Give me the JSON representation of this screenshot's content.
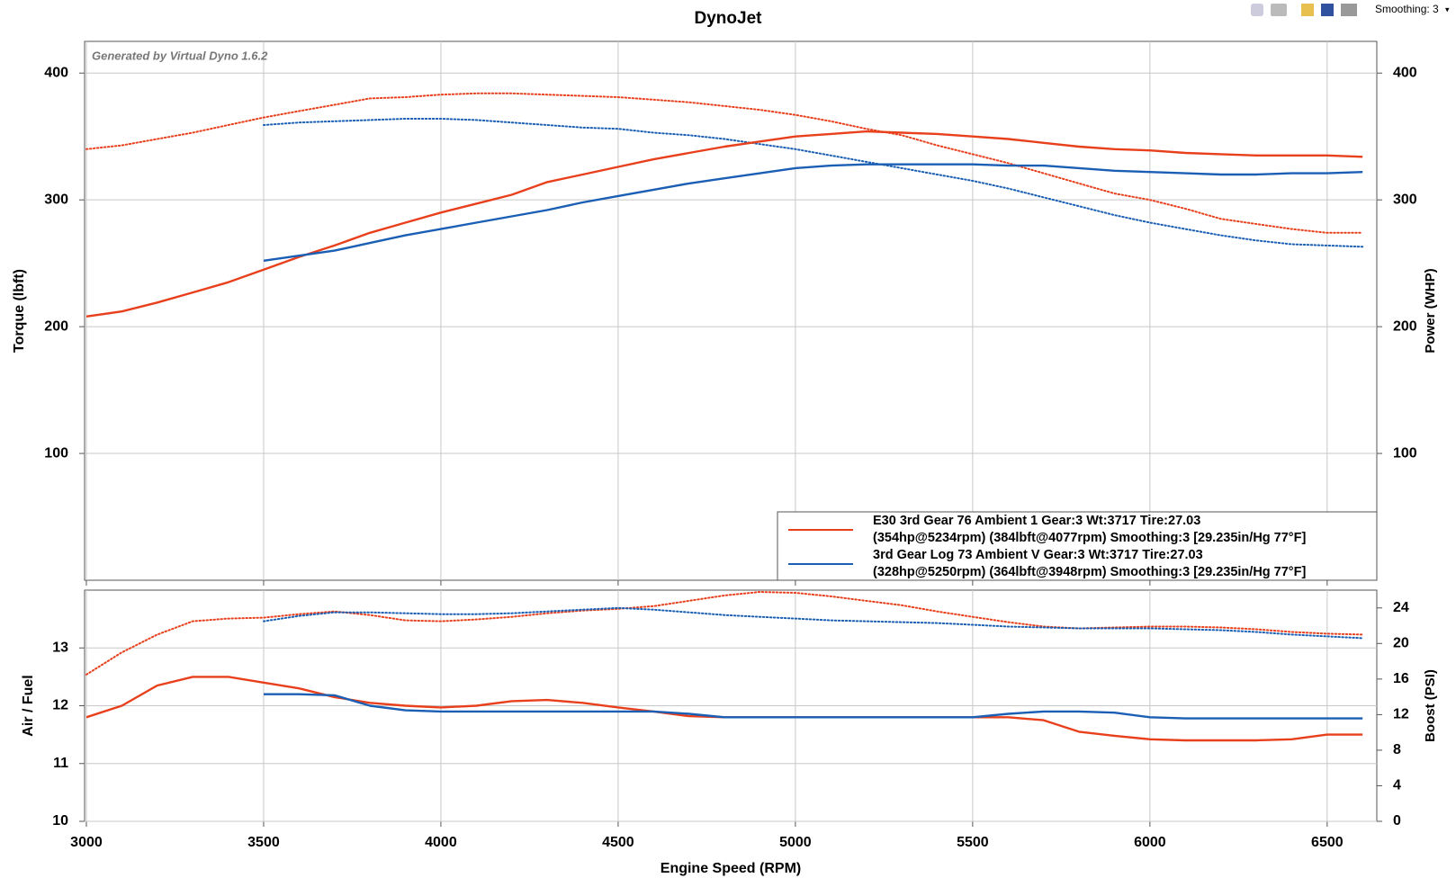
{
  "toolbar": {
    "smoothing": "Smoothing: 3"
  },
  "chart_data": [
    {
      "type": "line",
      "title": "DynoJet",
      "watermark": "Generated by Virtual Dyno 1.6.2",
      "ylabel": "Torque (lbft)",
      "y2label": "Power (WHP)",
      "xlim": [
        2995,
        6640
      ],
      "ylim": [
        0,
        425
      ],
      "yticks": [
        100,
        200,
        300,
        400
      ],
      "y2lim": [
        0,
        425
      ],
      "y2ticks": [
        100,
        200,
        300,
        400
      ],
      "grid": true,
      "x": [
        3000,
        3100,
        3200,
        3300,
        3400,
        3500,
        3600,
        3700,
        3800,
        3900,
        4000,
        4100,
        4200,
        4300,
        4400,
        4500,
        4600,
        4700,
        4800,
        4900,
        5000,
        5100,
        5200,
        5300,
        5400,
        5500,
        5600,
        5700,
        5800,
        5900,
        6000,
        6100,
        6200,
        6300,
        6400,
        6500,
        6600
      ],
      "series": [
        {
          "color": "#e8401c",
          "style": "dotted",
          "values": [
            340,
            343,
            348,
            353,
            359,
            365,
            370,
            375,
            380,
            381,
            383,
            384,
            384,
            383,
            382,
            381,
            379,
            377,
            374,
            371,
            367,
            362,
            356,
            351,
            343,
            336,
            329,
            321,
            313,
            305,
            300,
            293,
            285,
            281,
            277,
            274,
            274
          ]
        },
        {
          "color": "#1a5fb4",
          "style": "dotted",
          "values": [
            null,
            null,
            null,
            null,
            null,
            359,
            361,
            362,
            363,
            364,
            364,
            363,
            361,
            359,
            357,
            356,
            353,
            351,
            348,
            344,
            340,
            335,
            330,
            325,
            320,
            315,
            309,
            302,
            295,
            288,
            282,
            277,
            272,
            268,
            265,
            264,
            263
          ]
        },
        {
          "color": "#e8401c",
          "style": "solid",
          "axis": "y2",
          "values": [
            208,
            212,
            219,
            227,
            235,
            245,
            255,
            264,
            274,
            282,
            290,
            297,
            304,
            314,
            320,
            326,
            332,
            337,
            342,
            346,
            350,
            352,
            354,
            353,
            352,
            350,
            348,
            345,
            342,
            340,
            339,
            337,
            336,
            335,
            335,
            335,
            334
          ]
        },
        {
          "color": "#1a5fb4",
          "style": "solid",
          "axis": "y2",
          "values": [
            null,
            null,
            null,
            null,
            null,
            252,
            256,
            260,
            266,
            272,
            277,
            282,
            287,
            292,
            298,
            303,
            308,
            313,
            317,
            321,
            325,
            327,
            328,
            328,
            328,
            328,
            327,
            327,
            325,
            323,
            322,
            321,
            320,
            320,
            321,
            321,
            322
          ]
        }
      ],
      "legend": {
        "position": "lower right",
        "entries": [
          {
            "label": "E30 3rd Gear 76 Ambient 1 Gear:3 Wt:3717 Tire:27.03",
            "detail": "(354hp@5234rpm) (384lbft@4077rpm) Smoothing:3 [29.235in/Hg 77°F]",
            "color": "#e8401c"
          },
          {
            "label": "3rd Gear Log 73 Ambient V Gear:3 Wt:3717 Tire:27.03",
            "detail": "(328hp@5250rpm) (364lbft@3948rpm) Smoothing:3 [29.235in/Hg 77°F]",
            "color": "#1a5fb4"
          }
        ]
      }
    },
    {
      "type": "line",
      "xlabel": "Engine Speed (RPM)",
      "ylabel": "Air / Fuel",
      "y2label": "Boost (PSI)",
      "xlim": [
        2995,
        6640
      ],
      "xticks": [
        3000,
        3500,
        4000,
        4500,
        5000,
        5500,
        6000,
        6500
      ],
      "ylim": [
        10,
        14
      ],
      "yticks": [
        10,
        11,
        12,
        13
      ],
      "y2lim": [
        0,
        26
      ],
      "y2ticks": [
        0,
        4,
        8,
        12,
        16,
        20,
        24
      ],
      "grid": true,
      "x": [
        3000,
        3100,
        3200,
        3300,
        3400,
        3500,
        3600,
        3700,
        3800,
        3900,
        4000,
        4100,
        4200,
        4300,
        4400,
        4500,
        4600,
        4700,
        4800,
        4900,
        5000,
        5100,
        5200,
        5300,
        5400,
        5500,
        5600,
        5700,
        5800,
        5900,
        6000,
        6100,
        6200,
        6300,
        6400,
        6500,
        6600
      ],
      "series": [
        {
          "color": "#e8401c",
          "style": "dotted",
          "axis": "y2",
          "values": [
            16.5,
            19,
            21,
            22.5,
            22.8,
            22.9,
            23.3,
            23.6,
            23.2,
            22.6,
            22.5,
            22.7,
            23.0,
            23.4,
            23.7,
            23.9,
            24.2,
            24.8,
            25.4,
            25.8,
            25.7,
            25.3,
            24.8,
            24.3,
            23.6,
            23.0,
            22.4,
            21.9,
            21.7,
            21.8,
            21.9,
            21.9,
            21.8,
            21.6,
            21.3,
            21.1,
            21.0
          ]
        },
        {
          "color": "#1a5fb4",
          "style": "dotted",
          "axis": "y2",
          "values": [
            null,
            null,
            null,
            null,
            null,
            22.5,
            23.1,
            23.5,
            23.5,
            23.4,
            23.3,
            23.3,
            23.4,
            23.6,
            23.8,
            24.0,
            23.8,
            23.5,
            23.2,
            23.0,
            22.8,
            22.6,
            22.5,
            22.4,
            22.3,
            22.1,
            21.9,
            21.8,
            21.7,
            21.7,
            21.7,
            21.6,
            21.5,
            21.3,
            21.0,
            20.8,
            20.6
          ]
        },
        {
          "color": "#e8401c",
          "style": "solid",
          "values": [
            11.8,
            12.0,
            12.35,
            12.5,
            12.5,
            12.4,
            12.3,
            12.15,
            12.05,
            12.0,
            11.97,
            12.0,
            12.08,
            12.1,
            12.05,
            11.97,
            11.9,
            11.82,
            11.8,
            11.8,
            11.8,
            11.8,
            11.8,
            11.8,
            11.8,
            11.8,
            11.8,
            11.75,
            11.55,
            11.48,
            11.42,
            11.4,
            11.4,
            11.4,
            11.42,
            11.5,
            11.5
          ]
        },
        {
          "color": "#1a5fb4",
          "style": "solid",
          "values": [
            null,
            null,
            null,
            null,
            null,
            12.2,
            12.2,
            12.18,
            12.0,
            11.92,
            11.9,
            11.9,
            11.9,
            11.9,
            11.9,
            11.9,
            11.9,
            11.86,
            11.8,
            11.8,
            11.8,
            11.8,
            11.8,
            11.8,
            11.8,
            11.8,
            11.86,
            11.9,
            11.9,
            11.88,
            11.8,
            11.78,
            11.78,
            11.78,
            11.78,
            11.78,
            11.78
          ]
        }
      ]
    }
  ]
}
